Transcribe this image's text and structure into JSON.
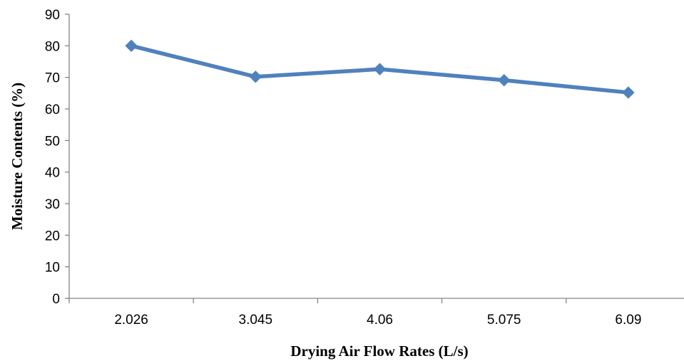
{
  "chart_data": {
    "type": "line",
    "title": "",
    "categories": [
      "2.026",
      "3.045",
      "4.06",
      "5.075",
      "6.09"
    ],
    "series": [
      {
        "values": [
          80,
          70.2,
          72.6,
          69.1,
          65.2
        ],
        "color": "#4F81BD",
        "marker": "diamond"
      }
    ],
    "xlabel": "Drying Air Flow Rates (L/s)",
    "ylabel": "Moisture Contents (%)",
    "ylim": [
      0,
      90
    ],
    "yticks": [
      0,
      10,
      20,
      30,
      40,
      50,
      60,
      70,
      80,
      90
    ],
    "grid": false,
    "legend": "none"
  }
}
